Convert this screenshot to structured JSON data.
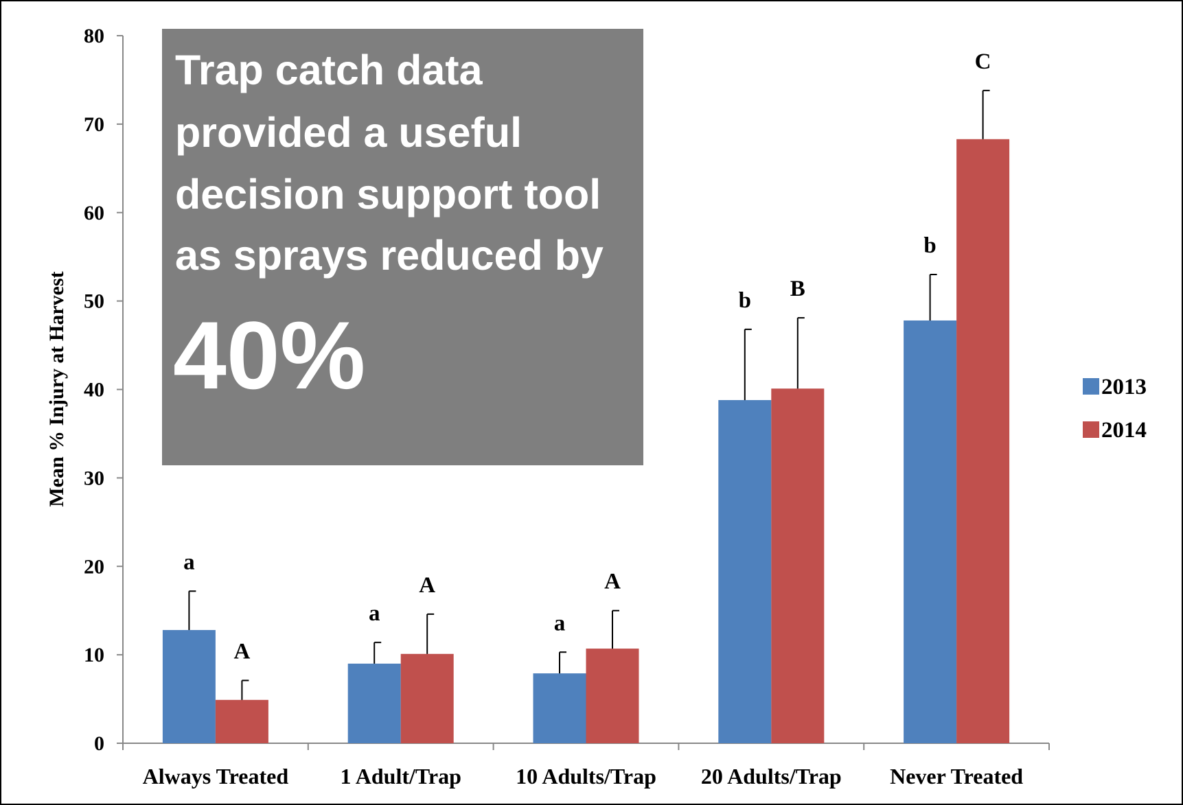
{
  "chart_data": {
    "type": "bar",
    "annotation": {
      "lines": [
        "Trap catch data",
        "provided a useful",
        "decision support tool",
        "as sprays reduced by"
      ],
      "highlight": "40%"
    },
    "y_label": "Mean % Injury at Harvest",
    "categories": [
      "Always Treated",
      "1 Adult/Trap",
      "10 Adults/Trap",
      "20 Adults/Trap",
      "Never Treated"
    ],
    "series": [
      {
        "name": "2013",
        "color": "#4f81bd",
        "values": [
          12.8,
          9.0,
          7.9,
          38.8,
          47.8
        ],
        "errors": [
          4.4,
          2.4,
          2.4,
          8.0,
          5.2
        ],
        "letters": [
          "a",
          "a",
          "a",
          "b",
          "b"
        ]
      },
      {
        "name": "2014",
        "color": "#c0504d",
        "values": [
          4.9,
          10.1,
          10.7,
          40.1,
          68.3
        ],
        "errors": [
          2.2,
          4.5,
          4.3,
          8.0,
          5.5
        ],
        "letters": [
          "A",
          "A",
          "A",
          "B",
          "C"
        ]
      }
    ],
    "ylim": [
      0,
      80
    ],
    "yticks": [
      0,
      10,
      20,
      30,
      40,
      50,
      60,
      70,
      80
    ],
    "legend": "right"
  }
}
